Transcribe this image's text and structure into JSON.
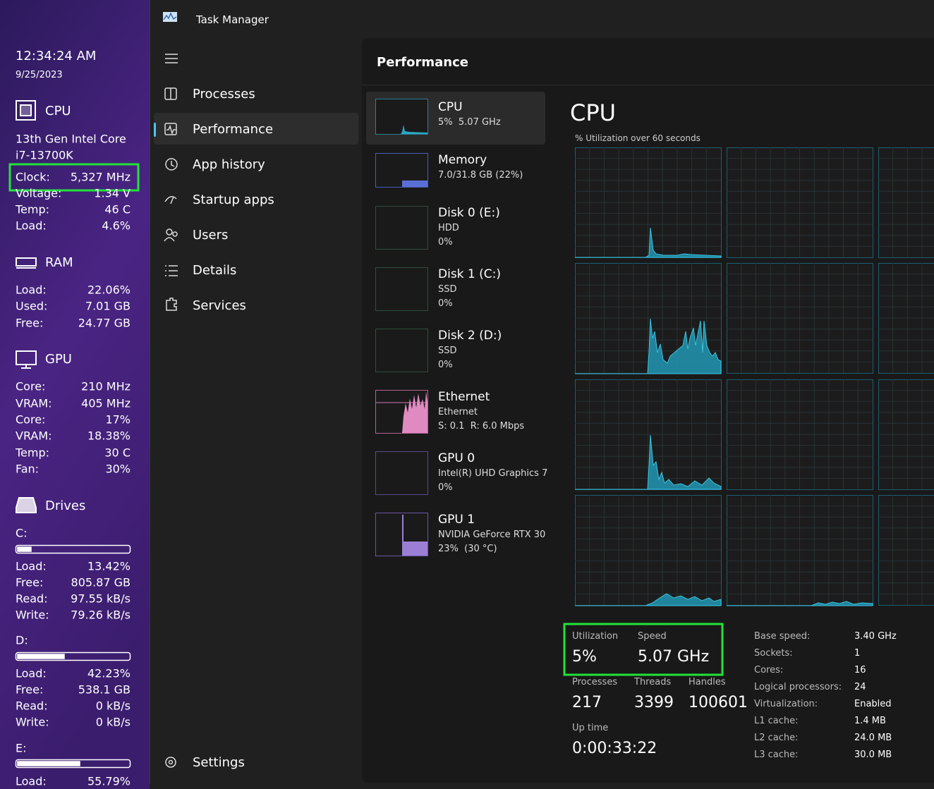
{
  "widget": {
    "time": "12:34:24 AM",
    "date": "9/25/2023",
    "cpu": {
      "title": "CPU",
      "model": [
        "13th Gen Intel Core",
        "i7-13700K"
      ],
      "rows": [
        [
          "Clock:",
          "5,327 MHz"
        ],
        [
          "Voltage:",
          "1.34 V"
        ],
        [
          "Temp:",
          "46 C"
        ],
        [
          "Load:",
          "4.6%"
        ]
      ]
    },
    "ram": {
      "title": "RAM",
      "rows": [
        [
          "Load:",
          "22.06%"
        ],
        [
          "Used:",
          "7.01 GB"
        ],
        [
          "Free:",
          "24.77 GB"
        ]
      ]
    },
    "gpu": {
      "title": "GPU",
      "rows": [
        [
          "Core:",
          "210 MHz"
        ],
        [
          "VRAM:",
          "405 MHz"
        ],
        [
          "Core:",
          "17%"
        ],
        [
          "VRAM:",
          "18.38%"
        ],
        [
          "Temp:",
          "30 C"
        ],
        [
          "Fan:",
          "30%"
        ]
      ]
    },
    "drives": {
      "title": "Drives",
      "items": [
        {
          "label": "C:",
          "rows": [
            [
              "Load:",
              "13.42%"
            ],
            [
              "Free:",
              "805.87 GB"
            ],
            [
              "Read:",
              "97.55 kB/s"
            ],
            [
              "Write:",
              "79.26 kB/s"
            ]
          ]
        },
        {
          "label": "D:",
          "rows": [
            [
              "Load:",
              "42.23%"
            ],
            [
              "Free:",
              "538.1 GB"
            ],
            [
              "Read:",
              "0 kB/s"
            ],
            [
              "Write:",
              "0 kB/s"
            ]
          ]
        },
        {
          "label": "E:",
          "rows": [
            [
              "Load:",
              "55.79%"
            ]
          ]
        }
      ]
    }
  },
  "window": {
    "title": "Task Manager",
    "nav": [
      "Processes",
      "Performance",
      "App history",
      "Startup apps",
      "Users",
      "Details",
      "Services"
    ],
    "settings": "Settings"
  },
  "performance": {
    "header": "Performance",
    "devices": [
      {
        "name": "CPU",
        "lines": [
          "5%  5.07 GHz"
        ]
      },
      {
        "name": "Memory",
        "lines": [
          "7.0/31.8 GB (22%)"
        ]
      },
      {
        "name": "Disk 0 (E:)",
        "lines": [
          "HDD",
          "0%"
        ]
      },
      {
        "name": "Disk 1 (C:)",
        "lines": [
          "SSD",
          "0%"
        ]
      },
      {
        "name": "Disk 2 (D:)",
        "lines": [
          "SSD",
          "0%"
        ]
      },
      {
        "name": "Ethernet",
        "lines": [
          "Ethernet",
          "S: 0.1  R: 6.0 Mbps"
        ]
      },
      {
        "name": "GPU 0",
        "lines": [
          "Intel(R) UHD Graphics 7",
          "0%"
        ]
      },
      {
        "name": "GPU 1",
        "lines": [
          "NVIDIA GeForce RTX 30",
          "23%  (30 °C)"
        ]
      }
    ],
    "detail": {
      "title": "CPU",
      "graph_label": "% Utilization over 60 seconds",
      "stats": [
        {
          "label": "Utilization",
          "value": "5%"
        },
        {
          "label": "Speed",
          "value": "5.07 GHz"
        },
        {
          "label": "Processes",
          "value": "217"
        },
        {
          "label": "Threads",
          "value": "3399"
        },
        {
          "label": "Handles",
          "value": "100601"
        },
        {
          "label": "Up time",
          "value": "0:00:33:22"
        }
      ],
      "specs": [
        [
          "Base speed:",
          "3.40 GHz"
        ],
        [
          "Sockets:",
          "1"
        ],
        [
          "Cores:",
          "16"
        ],
        [
          "Logical processors:",
          "24"
        ],
        [
          "Virtualization:",
          "Enabled"
        ],
        [
          "L1 cache:",
          "1.4 MB"
        ],
        [
          "L2 cache:",
          "24.0 MB"
        ],
        [
          "L3 cache:",
          "30.0 MB"
        ]
      ]
    }
  }
}
